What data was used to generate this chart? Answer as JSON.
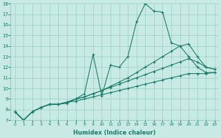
{
  "xlabel": "Humidex (Indice chaleur)",
  "ylabel": "",
  "xlim": [
    -0.5,
    23.5
  ],
  "ylim": [
    7,
    18
  ],
  "xticks": [
    0,
    1,
    2,
    3,
    4,
    5,
    6,
    7,
    8,
    9,
    10,
    11,
    12,
    13,
    14,
    15,
    16,
    17,
    18,
    19,
    20,
    21,
    22,
    23
  ],
  "yticks": [
    7,
    8,
    9,
    10,
    11,
    12,
    13,
    14,
    15,
    16,
    17,
    18
  ],
  "bg_color": "#c8eae4",
  "grid_color": "#99ccbb",
  "line_color": "#1a7a6a",
  "lines": [
    {
      "x": [
        0,
        1,
        2,
        3,
        4,
        5,
        6,
        7,
        8,
        9,
        10,
        11,
        12,
        13,
        14,
        15,
        16,
        17,
        18,
        19,
        20,
        21,
        22,
        23
      ],
      "y": [
        7.8,
        7.0,
        7.8,
        8.2,
        8.5,
        8.5,
        8.6,
        9.0,
        9.5,
        13.2,
        9.3,
        12.2,
        12.0,
        13.0,
        16.3,
        18.0,
        17.3,
        17.2,
        14.3,
        14.0,
        13.0,
        12.0,
        11.5,
        11.5
      ]
    },
    {
      "x": [
        0,
        1,
        2,
        3,
        4,
        5,
        6,
        7,
        8,
        9,
        10,
        11,
        12,
        13,
        14,
        15,
        16,
        17,
        18,
        19,
        20,
        21,
        22,
        23
      ],
      "y": [
        7.8,
        7.0,
        7.8,
        8.2,
        8.5,
        8.5,
        8.7,
        9.0,
        9.2,
        9.5,
        9.8,
        10.2,
        10.6,
        11.0,
        11.5,
        12.0,
        12.5,
        13.0,
        13.5,
        14.0,
        14.2,
        13.0,
        12.0,
        11.8
      ]
    },
    {
      "x": [
        0,
        1,
        2,
        3,
        4,
        5,
        6,
        7,
        8,
        9,
        10,
        11,
        12,
        13,
        14,
        15,
        16,
        17,
        18,
        19,
        20,
        21,
        22,
        23
      ],
      "y": [
        7.8,
        7.0,
        7.8,
        8.2,
        8.5,
        8.5,
        8.7,
        9.0,
        9.2,
        9.5,
        9.8,
        10.1,
        10.4,
        10.7,
        11.0,
        11.3,
        11.6,
        11.9,
        12.2,
        12.5,
        12.8,
        12.5,
        12.0,
        11.8
      ]
    },
    {
      "x": [
        0,
        1,
        2,
        3,
        4,
        5,
        6,
        7,
        8,
        9,
        10,
        11,
        12,
        13,
        14,
        15,
        16,
        17,
        18,
        19,
        20,
        21,
        22,
        23
      ],
      "y": [
        7.8,
        7.0,
        7.8,
        8.2,
        8.5,
        8.5,
        8.7,
        8.8,
        9.0,
        9.2,
        9.4,
        9.6,
        9.8,
        10.0,
        10.2,
        10.4,
        10.6,
        10.8,
        11.0,
        11.2,
        11.4,
        11.4,
        11.4,
        11.5
      ]
    }
  ]
}
